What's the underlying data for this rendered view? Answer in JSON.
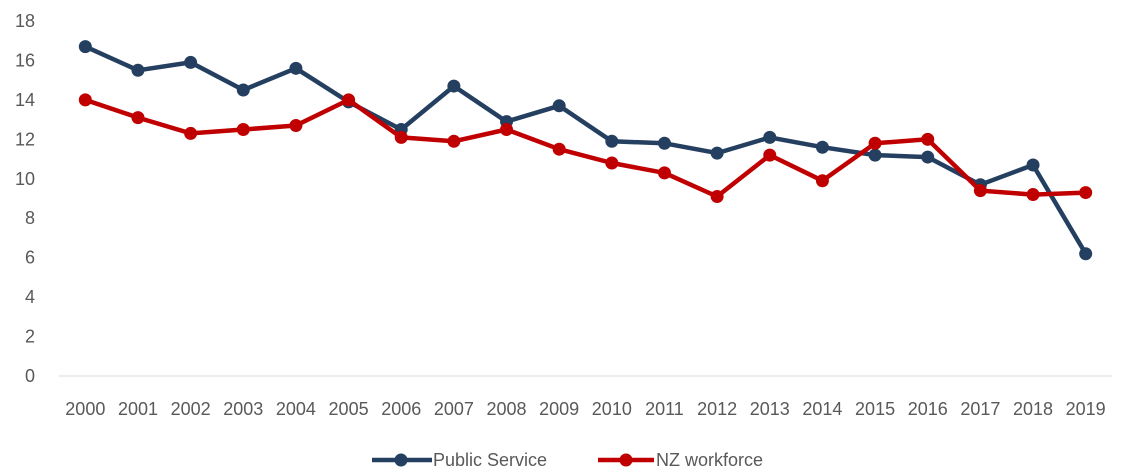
{
  "chart_data": {
    "type": "line",
    "title": "",
    "xlabel": "",
    "ylabel": "",
    "categories": [
      "2000",
      "2001",
      "2002",
      "2003",
      "2004",
      "2005",
      "2006",
      "2007",
      "2008",
      "2009",
      "2010",
      "2011",
      "2012",
      "2013",
      "2014",
      "2015",
      "2016",
      "2017",
      "2018",
      "2019"
    ],
    "ylim": [
      0,
      18
    ],
    "yticks": [
      "0",
      "2",
      "4",
      "6",
      "8",
      "10",
      "12",
      "14",
      "16",
      "18"
    ],
    "grid": false,
    "legend_position": "bottom",
    "series": [
      {
        "name": "Public Service",
        "color": "#243F60",
        "values": [
          16.7,
          15.5,
          15.9,
          14.5,
          15.6,
          13.9,
          12.5,
          14.7,
          12.9,
          13.7,
          11.9,
          11.8,
          11.3,
          12.1,
          11.6,
          11.2,
          11.1,
          9.7,
          10.7,
          6.2
        ]
      },
      {
        "name": "NZ workforce",
        "color": "#C00000",
        "values": [
          14.0,
          13.1,
          12.3,
          12.5,
          12.7,
          14.0,
          12.1,
          11.9,
          12.5,
          11.5,
          10.8,
          10.3,
          9.1,
          11.2,
          9.9,
          11.8,
          12.0,
          9.4,
          9.2,
          9.3
        ]
      }
    ]
  }
}
